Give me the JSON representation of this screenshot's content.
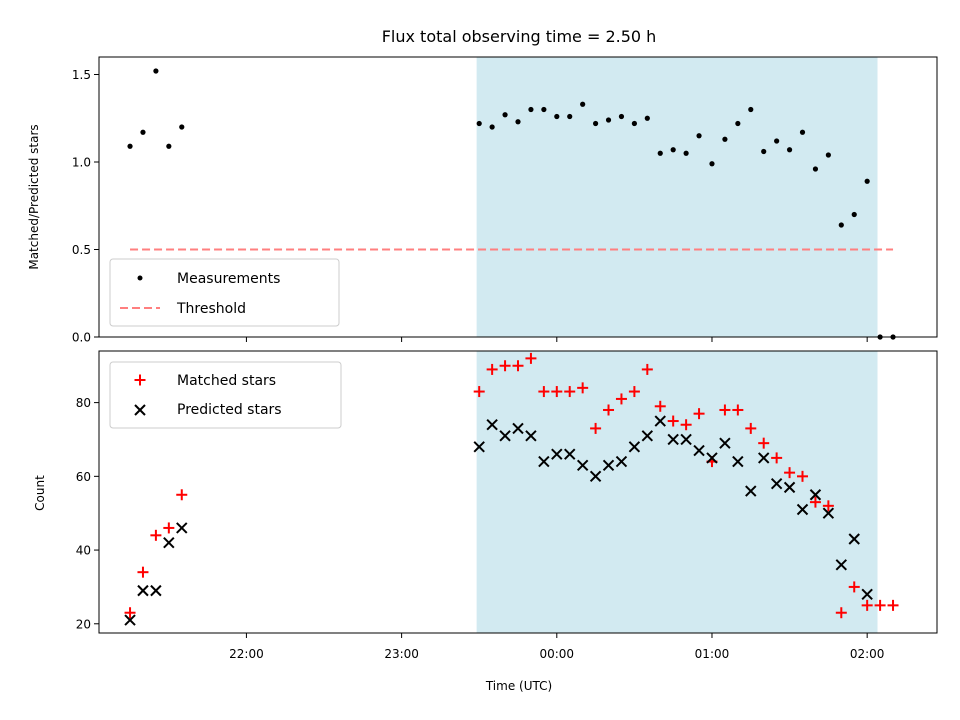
{
  "title": "Flux total observing time = 2.50 h",
  "colors": {
    "measurement": "#000000",
    "threshold": "#ff7f7f",
    "matched": "#ff0000",
    "predicted": "#000000",
    "window": "#add8e6"
  },
  "chart_data": [
    {
      "type": "scatter",
      "ylabel": "Matched/Predicted stars",
      "xlabel": "",
      "ylim": [
        0,
        1.6
      ],
      "yticks": [
        0.0,
        0.5,
        1.0,
        1.5
      ],
      "ytick_labels": [
        "0.0",
        "0.5",
        "1.0",
        "1.5"
      ],
      "observing_window": [
        "23:29",
        "02:04"
      ],
      "threshold": {
        "name": "Threshold",
        "y": 0.5,
        "x_start": "21:15",
        "x_end": "02:10"
      },
      "legend": [
        "Measurements",
        "Threshold"
      ],
      "legend_position": "lower-left",
      "series": [
        {
          "name": "Measurements",
          "points": [
            [
              "21:15",
              1.09
            ],
            [
              "21:20",
              1.17
            ],
            [
              "21:25",
              1.52
            ],
            [
              "21:30",
              1.09
            ],
            [
              "21:35",
              1.2
            ],
            [
              "23:30",
              1.22
            ],
            [
              "23:35",
              1.2
            ],
            [
              "23:40",
              1.27
            ],
            [
              "23:45",
              1.23
            ],
            [
              "23:50",
              1.3
            ],
            [
              "23:55",
              1.3
            ],
            [
              "00:00",
              1.26
            ],
            [
              "00:05",
              1.26
            ],
            [
              "00:10",
              1.33
            ],
            [
              "00:15",
              1.22
            ],
            [
              "00:20",
              1.24
            ],
            [
              "00:25",
              1.26
            ],
            [
              "00:30",
              1.22
            ],
            [
              "00:35",
              1.25
            ],
            [
              "00:40",
              1.05
            ],
            [
              "00:45",
              1.07
            ],
            [
              "00:50",
              1.05
            ],
            [
              "00:55",
              1.15
            ],
            [
              "01:00",
              0.99
            ],
            [
              "01:05",
              1.13
            ],
            [
              "01:10",
              1.22
            ],
            [
              "01:15",
              1.3
            ],
            [
              "01:20",
              1.06
            ],
            [
              "01:25",
              1.12
            ],
            [
              "01:30",
              1.07
            ],
            [
              "01:35",
              1.17
            ],
            [
              "01:40",
              0.96
            ],
            [
              "01:45",
              1.04
            ],
            [
              "01:50",
              0.64
            ],
            [
              "01:55",
              0.7
            ],
            [
              "02:00",
              0.89
            ],
            [
              "02:05",
              0.0
            ],
            [
              "02:10",
              0.0
            ]
          ]
        }
      ]
    },
    {
      "type": "scatter",
      "ylabel": "Count",
      "xlabel": "Time (UTC)",
      "ylim": [
        17.5,
        94
      ],
      "yticks": [
        20,
        40,
        60,
        80
      ],
      "ytick_labels": [
        "20",
        "40",
        "60",
        "80"
      ],
      "xlim": [
        "21:03",
        "02:27"
      ],
      "xticks": [
        "22:00",
        "23:00",
        "00:00",
        "01:00",
        "02:00"
      ],
      "xtick_labels": [
        "22:00",
        "23:00",
        "00:00",
        "01:00",
        "02:00"
      ],
      "observing_window": [
        "23:29",
        "02:04"
      ],
      "legend": [
        "Matched stars",
        "Predicted stars"
      ],
      "legend_position": "upper-left",
      "series": [
        {
          "name": "Matched stars",
          "marker": "+",
          "points": [
            [
              "21:15",
              23
            ],
            [
              "21:20",
              34
            ],
            [
              "21:25",
              44
            ],
            [
              "21:30",
              46
            ],
            [
              "21:35",
              55
            ],
            [
              "23:30",
              83
            ],
            [
              "23:35",
              89
            ],
            [
              "23:40",
              90
            ],
            [
              "23:45",
              90
            ],
            [
              "23:50",
              92
            ],
            [
              "23:55",
              83
            ],
            [
              "00:00",
              83
            ],
            [
              "00:05",
              83
            ],
            [
              "00:10",
              84
            ],
            [
              "00:15",
              73
            ],
            [
              "00:20",
              78
            ],
            [
              "00:25",
              81
            ],
            [
              "00:30",
              83
            ],
            [
              "00:35",
              89
            ],
            [
              "00:40",
              79
            ],
            [
              "00:45",
              75
            ],
            [
              "00:50",
              74
            ],
            [
              "00:55",
              77
            ],
            [
              "01:00",
              64
            ],
            [
              "01:05",
              78
            ],
            [
              "01:10",
              78
            ],
            [
              "01:15",
              73
            ],
            [
              "01:20",
              69
            ],
            [
              "01:25",
              65
            ],
            [
              "01:30",
              61
            ],
            [
              "01:35",
              60
            ],
            [
              "01:40",
              53
            ],
            [
              "01:45",
              52
            ],
            [
              "01:50",
              23
            ],
            [
              "01:55",
              30
            ],
            [
              "02:00",
              25
            ],
            [
              "02:05",
              25
            ],
            [
              "02:10",
              25
            ]
          ]
        },
        {
          "name": "Predicted stars",
          "marker": "x",
          "points": [
            [
              "21:15",
              21
            ],
            [
              "21:20",
              29
            ],
            [
              "21:25",
              29
            ],
            [
              "21:30",
              42
            ],
            [
              "21:35",
              46
            ],
            [
              "23:30",
              68
            ],
            [
              "23:35",
              74
            ],
            [
              "23:40",
              71
            ],
            [
              "23:45",
              73
            ],
            [
              "23:50",
              71
            ],
            [
              "23:55",
              64
            ],
            [
              "00:00",
              66
            ],
            [
              "00:05",
              66
            ],
            [
              "00:10",
              63
            ],
            [
              "00:15",
              60
            ],
            [
              "00:20",
              63
            ],
            [
              "00:25",
              64
            ],
            [
              "00:30",
              68
            ],
            [
              "00:35",
              71
            ],
            [
              "00:40",
              75
            ],
            [
              "00:45",
              70
            ],
            [
              "00:50",
              70
            ],
            [
              "00:55",
              67
            ],
            [
              "01:00",
              65
            ],
            [
              "01:05",
              69
            ],
            [
              "01:10",
              64
            ],
            [
              "01:15",
              56
            ],
            [
              "01:20",
              65
            ],
            [
              "01:25",
              58
            ],
            [
              "01:30",
              57
            ],
            [
              "01:35",
              51
            ],
            [
              "01:40",
              55
            ],
            [
              "01:45",
              50
            ],
            [
              "01:50",
              36
            ],
            [
              "01:55",
              43
            ],
            [
              "02:00",
              28
            ]
          ]
        }
      ]
    }
  ]
}
